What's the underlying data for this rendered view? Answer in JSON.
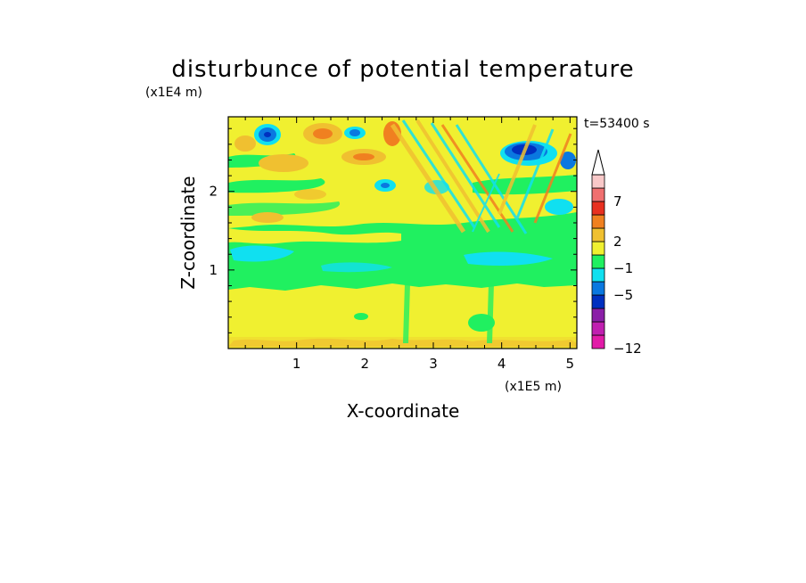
{
  "chart_data": {
    "type": "heatmap",
    "title": "disturbunce of potential temperature",
    "xlabel": "X-coordinate",
    "ylabel": "Z-coordinate",
    "x_scale_label": "(x1E5 m)",
    "y_scale_label": "(x1E4 m)",
    "time_label": "t=53400 s",
    "xlim": [
      0,
      5.1
    ],
    "ylim": [
      0,
      2.95
    ],
    "x_ticks": [
      1,
      2,
      3,
      4,
      5
    ],
    "y_ticks": [
      1,
      2
    ],
    "x_tick_labels": [
      "1",
      "2",
      "3",
      "4",
      "5"
    ],
    "y_tick_labels": [
      "1",
      "2"
    ],
    "colorbar": {
      "levels": [
        -12,
        -5,
        -1,
        2,
        7
      ],
      "level_labels": [
        "−12",
        "−5",
        "−1",
        "2",
        "7"
      ],
      "colors": [
        "#e21ba8",
        "#c01fb0",
        "#8b1fa8",
        "#0030c0",
        "#0a78e0",
        "#10e0f0",
        "#20f060",
        "#f0f030",
        "#f0c030",
        "#f08020",
        "#e83020",
        "#f07070",
        "#f8c8c8"
      ]
    },
    "field_summary": {
      "0.0-0.9": "yellow (about +1)",
      "0.9-1.7": "green (near 0) with cyan patches (about -1)",
      "1.7-2.95": "wave pattern of orange (+2 to +5), cyan and blue (-1 to -5)"
    }
  }
}
